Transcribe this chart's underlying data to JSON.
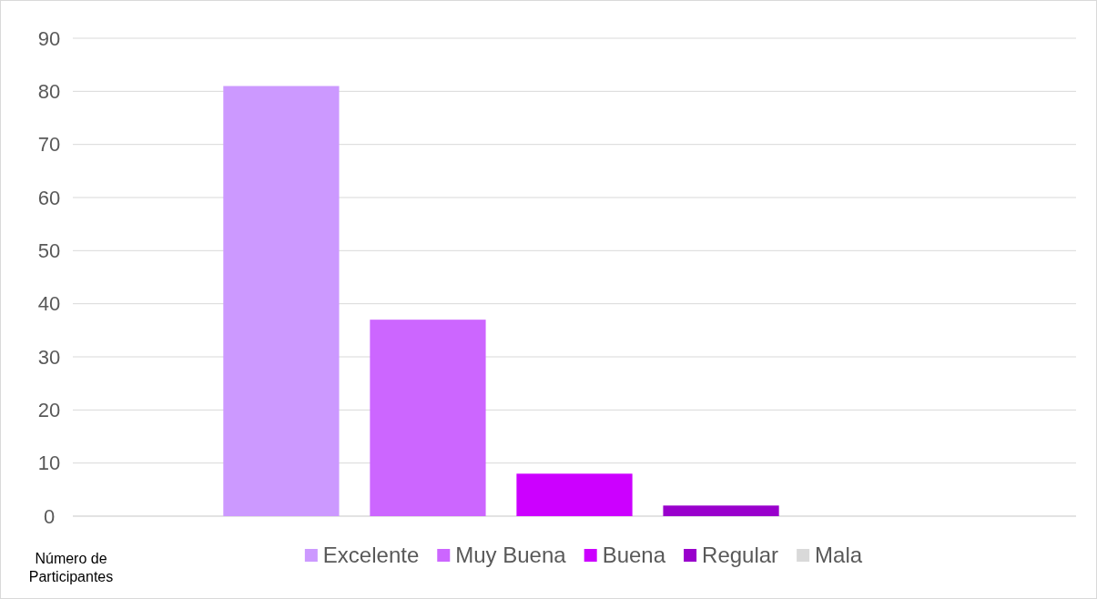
{
  "chart_data": {
    "type": "bar",
    "categories": [
      null
    ],
    "xlabel": "Número de Participantes",
    "series": [
      {
        "name": "Excelente",
        "color": "#cc99ff",
        "values": [
          81
        ]
      },
      {
        "name": "Muy Buena",
        "color": "#cc66ff",
        "values": [
          37
        ]
      },
      {
        "name": "Buena",
        "color": "#cc00ff",
        "values": [
          8
        ]
      },
      {
        "name": "Regular",
        "color": "#9900cc",
        "values": [
          2
        ]
      },
      {
        "name": "Mala",
        "color": "#d9d9d9",
        "values": [
          0
        ]
      }
    ],
    "ylim": [
      0,
      90
    ],
    "yticks": [
      0,
      10,
      20,
      30,
      40,
      50,
      60,
      70,
      80,
      90
    ],
    "grid": "y",
    "legend": "bottom"
  }
}
